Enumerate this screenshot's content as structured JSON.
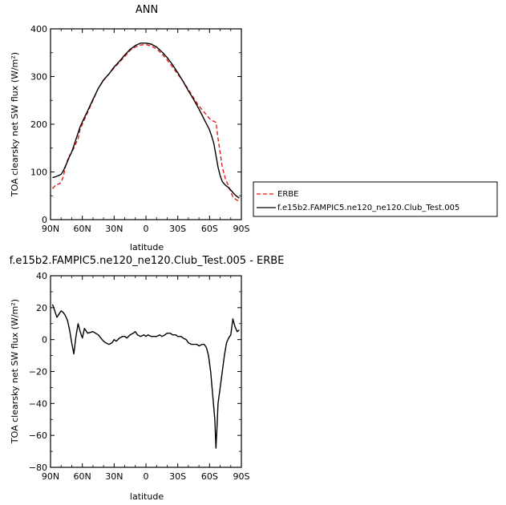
{
  "chart_data": [
    {
      "type": "line",
      "title": "ANN",
      "xlabel": "latitude",
      "ylabel": "TOA clearsky net SW flux (W/m²)",
      "xlim": [
        90,
        -90
      ],
      "ylim": [
        0,
        400
      ],
      "xticks": [
        90,
        60,
        30,
        0,
        -30,
        -60,
        -90
      ],
      "xtick_labels": [
        "90N",
        "60N",
        "30N",
        "0",
        "30S",
        "60S",
        "90S"
      ],
      "yticks": [
        0,
        100,
        200,
        300,
        400
      ],
      "ytick_labels": [
        "0",
        "100",
        "200",
        "300",
        "400"
      ],
      "grid": false,
      "legend_position": "right",
      "series": [
        {
          "name": "ERBE",
          "color": "#e31a1c",
          "dash": "dashed",
          "x": [
            88,
            85,
            82,
            80,
            78,
            76,
            74,
            72,
            70,
            68,
            66,
            64,
            62,
            60,
            55,
            50,
            45,
            40,
            35,
            30,
            25,
            20,
            15,
            10,
            5,
            0,
            -5,
            -10,
            -15,
            -20,
            -25,
            -30,
            -35,
            -40,
            -45,
            -50,
            -55,
            -60,
            -62,
            -64,
            -66,
            -68,
            -70,
            -72,
            -75,
            -78,
            -80,
            -82,
            -85,
            -88
          ],
          "y": [
            65,
            73,
            75,
            78,
            90,
            110,
            125,
            135,
            140,
            150,
            160,
            170,
            190,
            200,
            225,
            250,
            275,
            292,
            305,
            318,
            330,
            342,
            355,
            362,
            366,
            367,
            364,
            358,
            348,
            335,
            320,
            305,
            290,
            273,
            255,
            238,
            225,
            212,
            208,
            206,
            204,
            170,
            140,
            110,
            85,
            70,
            58,
            48,
            42,
            38
          ]
        },
        {
          "name": "f.e15b2.FAMPIC5.ne120_ne120.Club_Test.005",
          "color": "#000000",
          "dash": "solid",
          "x": [
            88,
            85,
            82,
            80,
            78,
            76,
            74,
            72,
            70,
            68,
            66,
            64,
            62,
            60,
            55,
            50,
            45,
            40,
            35,
            30,
            25,
            20,
            15,
            10,
            5,
            0,
            -5,
            -10,
            -15,
            -20,
            -25,
            -30,
            -35,
            -40,
            -45,
            -50,
            -55,
            -60,
            -62,
            -64,
            -66,
            -68,
            -70,
            -72,
            -75,
            -78,
            -80,
            -82,
            -85,
            -88
          ],
          "y": [
            88,
            90,
            93,
            95,
            102,
            112,
            122,
            133,
            142,
            155,
            168,
            182,
            195,
            205,
            228,
            252,
            275,
            293,
            305,
            320,
            332,
            345,
            357,
            365,
            370,
            370,
            368,
            362,
            352,
            340,
            325,
            308,
            290,
            270,
            252,
            232,
            210,
            188,
            175,
            160,
            135,
            110,
            92,
            80,
            72,
            67,
            62,
            57,
            50,
            45
          ]
        }
      ]
    },
    {
      "type": "line",
      "title": "f.e15b2.FAMPIC5.ne120_ne120.Club_Test.005 - ERBE",
      "xlabel": "latitude",
      "ylabel": "TOA clearsky net SW flux (W/m²)",
      "xlim": [
        90,
        -90
      ],
      "ylim": [
        -80,
        40
      ],
      "xticks": [
        90,
        60,
        30,
        0,
        -30,
        -60,
        -90
      ],
      "xtick_labels": [
        "90N",
        "60N",
        "30N",
        "0",
        "30S",
        "60S",
        "90S"
      ],
      "yticks": [
        -80,
        -60,
        -40,
        -20,
        0,
        20,
        40
      ],
      "ytick_labels": [
        "−80",
        "−60",
        "−40",
        "−20",
        "0",
        "20",
        "40"
      ],
      "grid": false,
      "series": [
        {
          "color": "#000000",
          "dash": "solid",
          "x": [
            88,
            86,
            84,
            82,
            80,
            78,
            76,
            74,
            72,
            70,
            68,
            66,
            64,
            62,
            60,
            58,
            55,
            50,
            45,
            40,
            38,
            35,
            32,
            30,
            28,
            25,
            22,
            20,
            18,
            15,
            12,
            10,
            8,
            5,
            2,
            0,
            -2,
            -5,
            -8,
            -10,
            -13,
            -15,
            -18,
            -20,
            -23,
            -25,
            -28,
            -30,
            -33,
            -35,
            -38,
            -40,
            -43,
            -45,
            -48,
            -50,
            -53,
            -55,
            -57,
            -59,
            -61,
            -63,
            -65,
            -66,
            -67,
            -68,
            -70,
            -72,
            -74,
            -76,
            -78,
            -80,
            -82,
            -84,
            -86,
            -88
          ],
          "y": [
            22,
            18,
            14,
            16,
            18,
            17,
            15,
            12,
            6,
            -2,
            -9,
            2,
            10,
            5,
            1,
            7,
            4,
            5,
            3,
            -1,
            -2,
            -3,
            -2,
            0,
            -1,
            1,
            2,
            2,
            1,
            3,
            4,
            5,
            3,
            2,
            3,
            2,
            3,
            2,
            2,
            2,
            3,
            2,
            3,
            4,
            4,
            3,
            3,
            2,
            2,
            1,
            0,
            -2,
            -3,
            -3,
            -3,
            -4,
            -3,
            -3,
            -5,
            -10,
            -20,
            -35,
            -50,
            -68,
            -55,
            -40,
            -30,
            -20,
            -10,
            -2,
            1,
            3,
            13,
            8,
            5,
            6
          ]
        }
      ]
    }
  ]
}
